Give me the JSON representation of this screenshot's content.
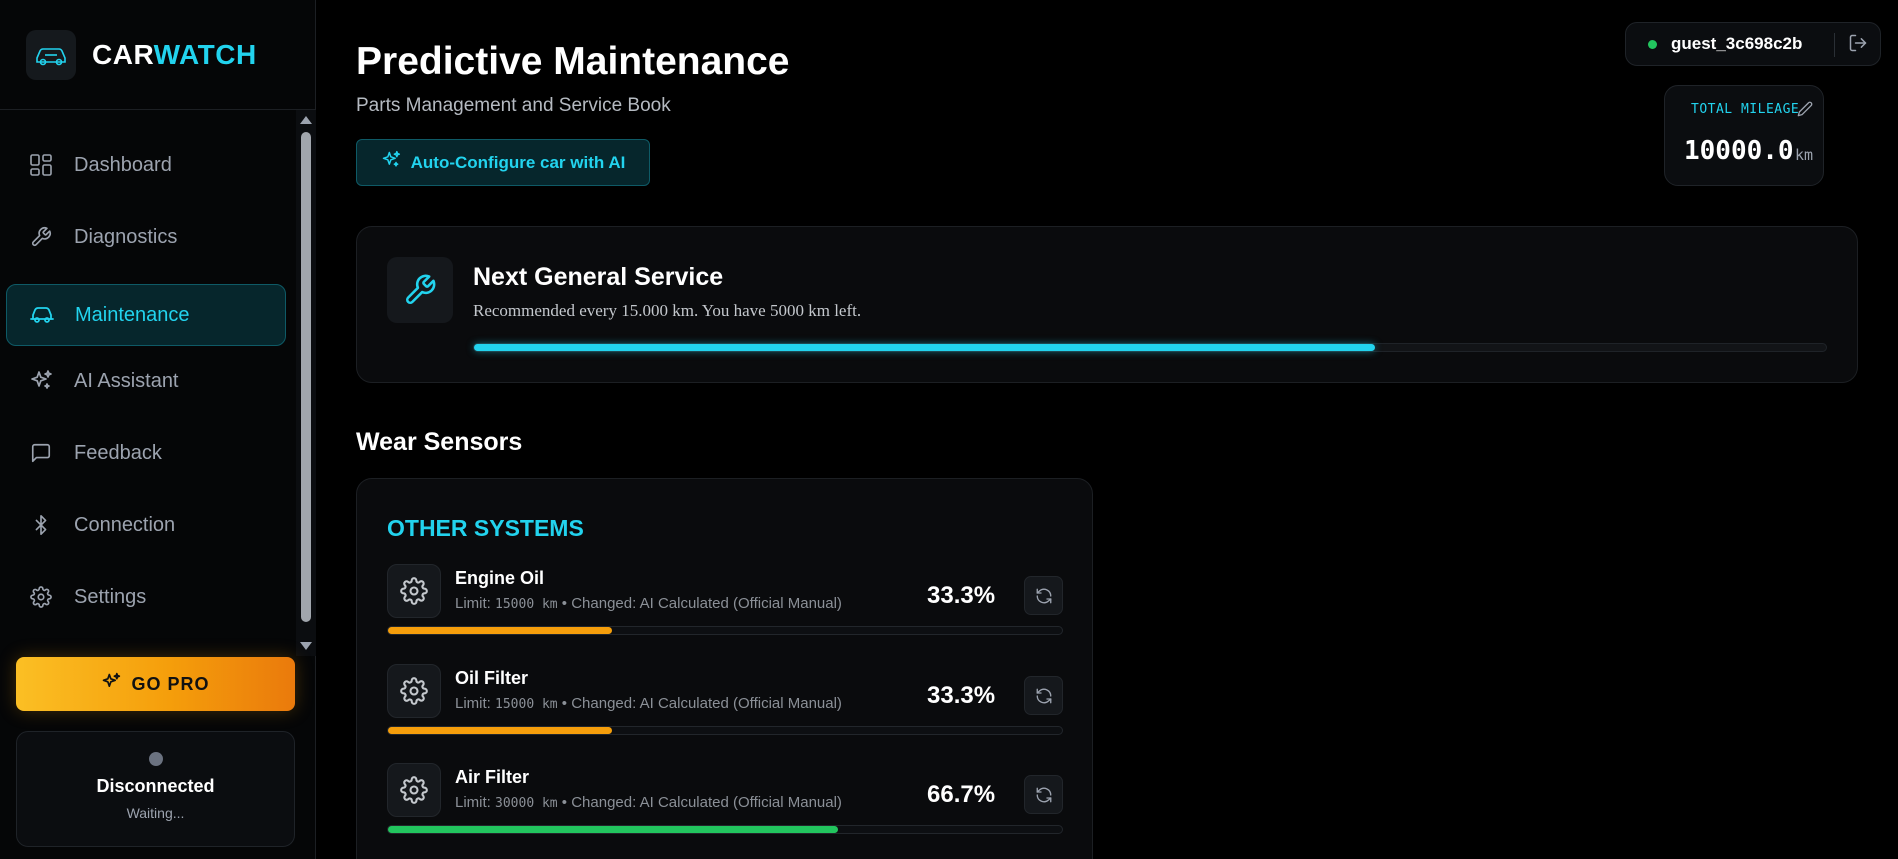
{
  "brand": {
    "name_part1": "CAR",
    "name_part2": "WATCH"
  },
  "sidebar": {
    "items": [
      {
        "label": "Dashboard",
        "icon": "dashboard-grid-icon",
        "active": false
      },
      {
        "label": "Diagnostics",
        "icon": "wrench-icon",
        "active": false
      },
      {
        "label": "Maintenance",
        "icon": "car-icon",
        "active": true
      },
      {
        "label": "AI Assistant",
        "icon": "sparkles-icon",
        "active": false
      },
      {
        "label": "Feedback",
        "icon": "message-square-icon",
        "active": false
      },
      {
        "label": "Connection",
        "icon": "bluetooth-icon",
        "active": false
      },
      {
        "label": "Settings",
        "icon": "gear-icon",
        "active": false
      }
    ],
    "go_pro_label": "GO PRO",
    "connection": {
      "title": "Disconnected",
      "subtitle": "Waiting..."
    }
  },
  "header": {
    "title": "Predictive Maintenance",
    "subtitle": "Parts Management and Service Book",
    "ai_button_label": "Auto-Configure car with AI",
    "user": {
      "name": "guest_3c698c2b",
      "status_color": "#22c55e"
    },
    "mileage": {
      "label": "TOTAL MILEAGE",
      "value": "10000.0",
      "unit": "km"
    }
  },
  "service": {
    "title": "Next General Service",
    "description": "Recommended every 15.000 km. You have 5000 km left.",
    "progress": 0.6667
  },
  "wear": {
    "section_title": "Wear Sensors",
    "group_title": "OTHER SYSTEMS",
    "items": [
      {
        "name": "Engine Oil",
        "limit_prefix": "Limit: ",
        "limit": "15000 km",
        "changed": " • Changed: AI Calculated (Official Manual)",
        "percent": "33.3%",
        "fraction": 0.333,
        "color": "#f59e0b"
      },
      {
        "name": "Oil Filter",
        "limit_prefix": "Limit: ",
        "limit": "15000 km",
        "changed": " • Changed: AI Calculated (Official Manual)",
        "percent": "33.3%",
        "fraction": 0.333,
        "color": "#f59e0b"
      },
      {
        "name": "Air Filter",
        "limit_prefix": "Limit: ",
        "limit": "30000 km",
        "changed": " • Changed: AI Calculated (Official Manual)",
        "percent": "66.7%",
        "fraction": 0.667,
        "color": "#22c55e"
      }
    ]
  },
  "colors": {
    "accent": "#22d3ee",
    "pro": "#f59e0b",
    "ok": "#22c55e"
  }
}
